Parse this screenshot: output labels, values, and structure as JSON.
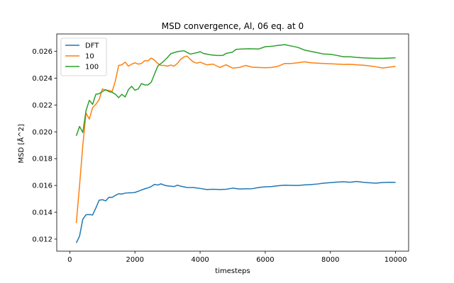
{
  "chart_data": {
    "type": "line",
    "title": "MSD convergence, Al, 06 eq. at 0",
    "xlabel": "timesteps",
    "ylabel": "MSD [Å^2]",
    "xlim": [
      -400,
      10400
    ],
    "ylim": [
      0.0111,
      0.0273
    ],
    "xticks": [
      0,
      2000,
      4000,
      6000,
      8000,
      10000
    ],
    "yticks": [
      0.012,
      0.014,
      0.016,
      0.018,
      0.02,
      0.022,
      0.024,
      0.026
    ],
    "ytick_labels": [
      "0.012",
      "0.014",
      "0.016",
      "0.018",
      "0.020",
      "0.022",
      "0.024",
      "0.026"
    ],
    "grid": false,
    "legend_position": "top-left",
    "series": [
      {
        "name": "DFT",
        "color": "#1f77b4",
        "points": [
          [
            200,
            0.01172
          ],
          [
            300,
            0.01222
          ],
          [
            400,
            0.01348
          ],
          [
            500,
            0.01382
          ],
          [
            600,
            0.01383
          ],
          [
            700,
            0.0138
          ],
          [
            800,
            0.01432
          ],
          [
            900,
            0.0149
          ],
          [
            1000,
            0.01494
          ],
          [
            1100,
            0.01485
          ],
          [
            1200,
            0.01512
          ],
          [
            1300,
            0.01511
          ],
          [
            1400,
            0.01526
          ],
          [
            1500,
            0.01538
          ],
          [
            1600,
            0.01536
          ],
          [
            1700,
            0.01543
          ],
          [
            1800,
            0.01545
          ],
          [
            1900,
            0.01545
          ],
          [
            2000,
            0.01548
          ],
          [
            2100,
            0.01557
          ],
          [
            2200,
            0.01566
          ],
          [
            2300,
            0.01575
          ],
          [
            2400,
            0.01582
          ],
          [
            2500,
            0.01592
          ],
          [
            2600,
            0.01608
          ],
          [
            2700,
            0.01603
          ],
          [
            2800,
            0.01612
          ],
          [
            2900,
            0.01602
          ],
          [
            3000,
            0.01597
          ],
          [
            3200,
            0.01592
          ],
          [
            3300,
            0.01602
          ],
          [
            3400,
            0.01595
          ],
          [
            3600,
            0.01585
          ],
          [
            3800,
            0.01584
          ],
          [
            4000,
            0.01578
          ],
          [
            4200,
            0.0157
          ],
          [
            4400,
            0.01572
          ],
          [
            4600,
            0.0157
          ],
          [
            4800,
            0.01572
          ],
          [
            5000,
            0.0158
          ],
          [
            5200,
            0.01574
          ],
          [
            5400,
            0.01575
          ],
          [
            5600,
            0.01576
          ],
          [
            5800,
            0.01585
          ],
          [
            6000,
            0.0159
          ],
          [
            6200,
            0.01592
          ],
          [
            6400,
            0.01598
          ],
          [
            6600,
            0.01602
          ],
          [
            6800,
            0.01601
          ],
          [
            7000,
            0.016
          ],
          [
            7200,
            0.01604
          ],
          [
            7400,
            0.01607
          ],
          [
            7600,
            0.01611
          ],
          [
            7800,
            0.01617
          ],
          [
            8000,
            0.01621
          ],
          [
            8200,
            0.01625
          ],
          [
            8400,
            0.01628
          ],
          [
            8600,
            0.01624
          ],
          [
            8800,
            0.0163
          ],
          [
            9000,
            0.01624
          ],
          [
            9200,
            0.0162
          ],
          [
            9400,
            0.01617
          ],
          [
            9600,
            0.01622
          ],
          [
            9800,
            0.01624
          ],
          [
            10000,
            0.01623
          ]
        ]
      },
      {
        "name": "10",
        "color": "#ff7f0e",
        "points": [
          [
            200,
            0.0132
          ],
          [
            300,
            0.016
          ],
          [
            400,
            0.019
          ],
          [
            500,
            0.0214
          ],
          [
            600,
            0.02095
          ],
          [
            700,
            0.0218
          ],
          [
            800,
            0.02205
          ],
          [
            900,
            0.0224
          ],
          [
            1000,
            0.0232
          ],
          [
            1100,
            0.0231
          ],
          [
            1200,
            0.0231
          ],
          [
            1300,
            0.023
          ],
          [
            1400,
            0.0238
          ],
          [
            1500,
            0.02495
          ],
          [
            1600,
            0.025
          ],
          [
            1700,
            0.0252
          ],
          [
            1800,
            0.0249
          ],
          [
            1900,
            0.02505
          ],
          [
            2000,
            0.02515
          ],
          [
            2100,
            0.02505
          ],
          [
            2200,
            0.0251
          ],
          [
            2300,
            0.0253
          ],
          [
            2400,
            0.0253
          ],
          [
            2500,
            0.0255
          ],
          [
            2600,
            0.02535
          ],
          [
            2700,
            0.0251
          ],
          [
            2800,
            0.02495
          ],
          [
            2900,
            0.02495
          ],
          [
            3000,
            0.0249
          ],
          [
            3100,
            0.02498
          ],
          [
            3200,
            0.0249
          ],
          [
            3300,
            0.0251
          ],
          [
            3400,
            0.0254
          ],
          [
            3500,
            0.02558
          ],
          [
            3600,
            0.02565
          ],
          [
            3700,
            0.0254
          ],
          [
            3800,
            0.0252
          ],
          [
            3900,
            0.02512
          ],
          [
            4000,
            0.0252
          ],
          [
            4200,
            0.025
          ],
          [
            4400,
            0.02505
          ],
          [
            4600,
            0.0248
          ],
          [
            4800,
            0.025
          ],
          [
            5000,
            0.02475
          ],
          [
            5200,
            0.0248
          ],
          [
            5400,
            0.02495
          ],
          [
            5600,
            0.02482
          ],
          [
            5800,
            0.0248
          ],
          [
            6000,
            0.02478
          ],
          [
            6200,
            0.0248
          ],
          [
            6400,
            0.0249
          ],
          [
            6600,
            0.0251
          ],
          [
            6800,
            0.0251
          ],
          [
            7000,
            0.02515
          ],
          [
            7200,
            0.02522
          ],
          [
            7400,
            0.02515
          ],
          [
            7600,
            0.02512
          ],
          [
            7800,
            0.0251
          ],
          [
            8000,
            0.02508
          ],
          [
            8200,
            0.02505
          ],
          [
            8400,
            0.02503
          ],
          [
            8600,
            0.02504
          ],
          [
            8800,
            0.025
          ],
          [
            9000,
            0.02497
          ],
          [
            9200,
            0.02492
          ],
          [
            9400,
            0.02485
          ],
          [
            9600,
            0.02476
          ],
          [
            9800,
            0.02482
          ],
          [
            10000,
            0.02488
          ]
        ]
      },
      {
        "name": "100",
        "color": "#2ca02c",
        "points": [
          [
            200,
            0.0197
          ],
          [
            300,
            0.0204
          ],
          [
            400,
            0.01995
          ],
          [
            500,
            0.0216
          ],
          [
            600,
            0.02235
          ],
          [
            700,
            0.02205
          ],
          [
            800,
            0.0228
          ],
          [
            900,
            0.02285
          ],
          [
            1000,
            0.023
          ],
          [
            1100,
            0.02315
          ],
          [
            1200,
            0.023
          ],
          [
            1300,
            0.02295
          ],
          [
            1400,
            0.0228
          ],
          [
            1500,
            0.02255
          ],
          [
            1600,
            0.0228
          ],
          [
            1700,
            0.0226
          ],
          [
            1800,
            0.02315
          ],
          [
            1900,
            0.0234
          ],
          [
            2000,
            0.0231
          ],
          [
            2100,
            0.0232
          ],
          [
            2200,
            0.0236
          ],
          [
            2300,
            0.0235
          ],
          [
            2400,
            0.0235
          ],
          [
            2500,
            0.0237
          ],
          [
            2600,
            0.0243
          ],
          [
            2700,
            0.0249
          ],
          [
            2800,
            0.0251
          ],
          [
            2900,
            0.0253
          ],
          [
            3000,
            0.02555
          ],
          [
            3100,
            0.02583
          ],
          [
            3300,
            0.02598
          ],
          [
            3500,
            0.02605
          ],
          [
            3700,
            0.0258
          ],
          [
            3900,
            0.0259
          ],
          [
            4000,
            0.02598
          ],
          [
            4100,
            0.02585
          ],
          [
            4300,
            0.02575
          ],
          [
            4500,
            0.0257
          ],
          [
            4700,
            0.0257
          ],
          [
            4800,
            0.02585
          ],
          [
            5000,
            0.02595
          ],
          [
            5100,
            0.02615
          ],
          [
            5300,
            0.02618
          ],
          [
            5500,
            0.0262
          ],
          [
            5800,
            0.02618
          ],
          [
            6000,
            0.02635
          ],
          [
            6200,
            0.02638
          ],
          [
            6400,
            0.02645
          ],
          [
            6600,
            0.0265
          ],
          [
            6800,
            0.0264
          ],
          [
            7000,
            0.0263
          ],
          [
            7200,
            0.0261
          ],
          [
            7400,
            0.026
          ],
          [
            7600,
            0.0259
          ],
          [
            7800,
            0.0258
          ],
          [
            8000,
            0.02578
          ],
          [
            8200,
            0.0257
          ],
          [
            8400,
            0.0256
          ],
          [
            8600,
            0.0256
          ],
          [
            8800,
            0.02555
          ],
          [
            9000,
            0.02552
          ],
          [
            9200,
            0.0255
          ],
          [
            9400,
            0.02548
          ],
          [
            9600,
            0.02548
          ],
          [
            9800,
            0.0255
          ],
          [
            10000,
            0.02552
          ]
        ]
      }
    ]
  }
}
